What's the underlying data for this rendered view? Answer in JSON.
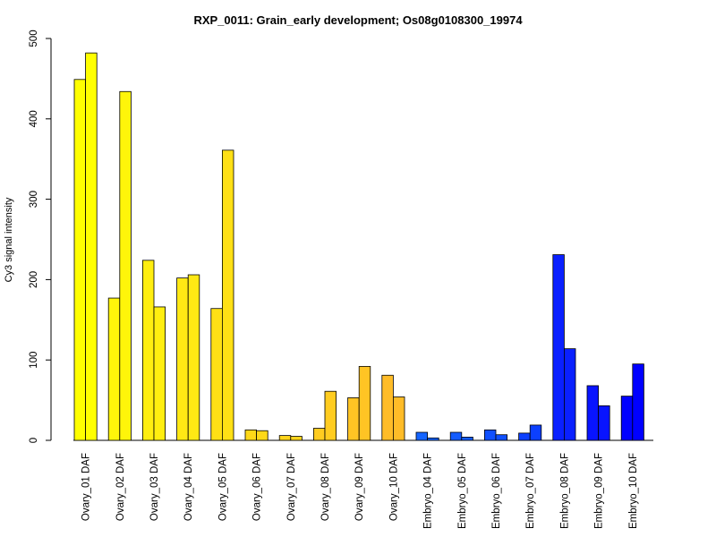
{
  "chart_data": {
    "type": "bar",
    "title": "RXP_0011: Grain_early development; Os08g0108300_19974",
    "ylabel": "Cy3 signal intensity",
    "xlabel": "",
    "ylim": [
      0,
      500
    ],
    "yticks": [
      0,
      100,
      200,
      300,
      400,
      500
    ],
    "grid": false,
    "categories": [
      "Ovary_01 DAF",
      "Ovary_02 DAF",
      "Ovary_03 DAF",
      "Ovary_04 DAF",
      "Ovary_05 DAF",
      "Ovary_06 DAF",
      "Ovary_07 DAF",
      "Ovary_08 DAF",
      "Ovary_09 DAF",
      "Ovary_10 DAF",
      "Embryo_04 DAF",
      "Embryo_05 DAF",
      "Embryo_06 DAF",
      "Embryo_07 DAF",
      "Embryo_08 DAF",
      "Embryo_09 DAF",
      "Embryo_10 DAF"
    ],
    "group_colors": [
      "#ffff00",
      "#fff50a",
      "#ffee10",
      "#ffe814",
      "#ffe015",
      "#ffd818",
      "#ffd41c",
      "#ffcc20",
      "#ffc424",
      "#ffbc28",
      "#1464ff",
      "#145cff",
      "#1050ff",
      "#0c40ff",
      "#0a20ff",
      "#0814ff",
      "#0000ff"
    ],
    "replicates": [
      [
        449,
        482
      ],
      [
        177,
        434
      ],
      [
        224,
        166
      ],
      [
        202,
        206
      ],
      [
        164,
        361
      ],
      [
        13,
        12
      ],
      [
        6,
        5
      ],
      [
        15,
        61
      ],
      [
        53,
        92
      ],
      [
        81,
        54
      ],
      [
        10,
        3
      ],
      [
        10,
        4
      ],
      [
        13,
        7
      ],
      [
        9,
        19
      ],
      [
        231,
        114
      ],
      [
        68,
        43
      ],
      [
        55,
        95
      ]
    ]
  }
}
